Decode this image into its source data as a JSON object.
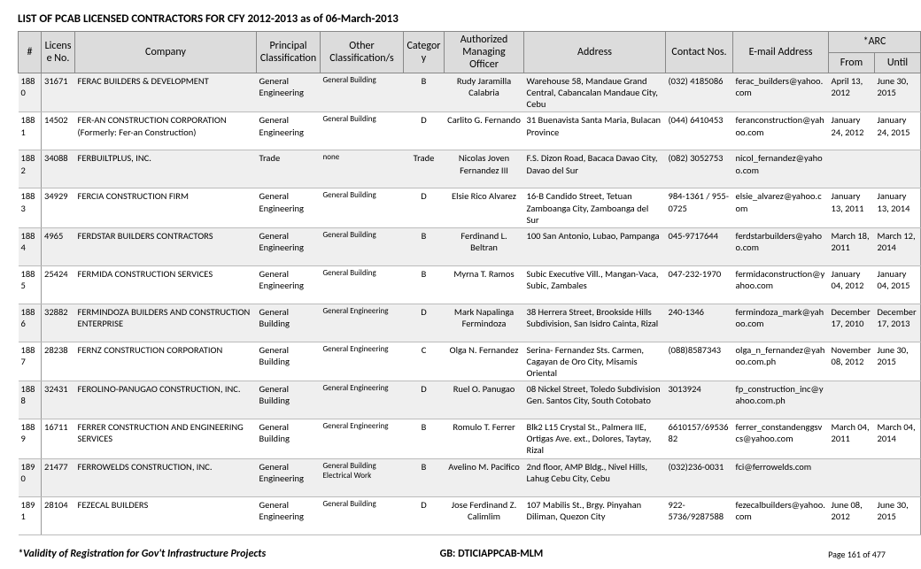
{
  "title": "LIST OF PCAB LICENSED CONTRACTORS FOR CFY 2012-2013 as of  06-March-2013",
  "columns": {
    "num": "#",
    "license": "License No.",
    "company": "Company",
    "principal": "Principal Classification",
    "other": "Other Classification/s",
    "category": "Category",
    "manager": "Authorized Managing Officer",
    "address": "Address",
    "contact": "Contact Nos.",
    "email": "E-mail Address",
    "arc": "*ARC",
    "from": "From",
    "until": "Until"
  },
  "rows": [
    {
      "n": "1880",
      "lic": "31671",
      "comp": "FERAC BUILDERS & DEVELOPMENT",
      "prin": "General Engineering",
      "other": "General Building",
      "cat": "B",
      "mgr": "Rudy Jaramilla Calabria",
      "addr": "Warehouse 58, Mandaue Grand Central, Cabancalan Mandaue City, Cebu",
      "contact": "(032) 4185086",
      "email": "ferac_builders@yahoo.com",
      "from": "April 13, 2012",
      "until": "June 30, 2015"
    },
    {
      "n": "1881",
      "lic": "14502",
      "comp": "FER-AN CONSTRUCTION CORPORATION (Formerly: Fer-an Construction)",
      "prin": "General Engineering",
      "other": "General Building",
      "cat": "D",
      "mgr": "Carlito G. Fernando",
      "addr": "31 Buenavista Santa Maria, Bulacan Province",
      "contact": "(044) 6410453",
      "email": "feranconstruction@yahoo.com",
      "from": "January 24, 2012",
      "until": "January 24, 2015"
    },
    {
      "n": "1882",
      "lic": "34088",
      "comp": "FERBUILTPLUS, INC.",
      "prin": "Trade",
      "other": "none",
      "cat": "Trade",
      "mgr": "Nicolas Joven Fernandez  III",
      "addr": "F.S. Dizon Road, Bacaca Davao City, Davao del Sur",
      "contact": "(082) 3052753",
      "email": "nicol_fernandez@yahoo.com",
      "from": "",
      "until": ""
    },
    {
      "n": "1883",
      "lic": "34929",
      "comp": "FERCIA CONSTRUCTION FIRM",
      "prin": "General Engineering",
      "other": "General Building",
      "cat": "D",
      "mgr": "Elsie Rico Alvarez",
      "addr": "16-B Candido Street, Tetuan Zamboanga City, Zamboanga del Sur",
      "contact": "984-1361 / 955-0725",
      "email": "elsie_alvarez@yahoo.com",
      "from": "January 13, 2011",
      "until": "January 13, 2014"
    },
    {
      "n": "1884",
      "lic": "4965",
      "comp": "FERDSTAR BUILDERS CONTRACTORS",
      "prin": "General Engineering",
      "other": "General Building",
      "cat": "B",
      "mgr": "Ferdinand L. Beltran",
      "addr": "100 San Antonio, Lubao, Pampanga",
      "contact": "045-9717644",
      "email": "ferdstarbuilders@yahoo.com",
      "from": "March 18, 2011",
      "until": "March 12, 2014"
    },
    {
      "n": "1885",
      "lic": "25424",
      "comp": "FERMIDA CONSTRUCTION SERVICES",
      "prin": "General Engineering",
      "other": "General Building",
      "cat": "B",
      "mgr": "Myrna T. Ramos",
      "addr": "Subic Executive Vill., Mangan-Vaca, Subic, Zambales",
      "contact": "047-232-1970",
      "email": "fermidaconstruction@yahoo.com",
      "from": "January 04, 2012",
      "until": "January 04, 2015"
    },
    {
      "n": "1886",
      "lic": "32882",
      "comp": "FERMINDOZA BUILDERS AND CONSTRUCTION ENTERPRISE",
      "prin": "General Building",
      "other": "General Engineering",
      "cat": "D",
      "mgr": "Mark Napalinga Fermindoza",
      "addr": "38 Herrera Street, Brookside Hills Subdivision, San Isidro Cainta, Rizal",
      "contact": "240-1346",
      "email": "fermindoza_mark@yahoo.com",
      "from": "December 17, 2010",
      "until": "December 17, 2013"
    },
    {
      "n": "1887",
      "lic": "28238",
      "comp": "FERNZ CONSTRUCTION CORPORATION",
      "prin": "General Building",
      "other": "General Engineering",
      "cat": "C",
      "mgr": "Olga N. Fernandez",
      "addr": "Serina- Fernandez Sts. Carmen, Cagayan de Oro City, Misamis Oriental",
      "contact": "(088)8587343",
      "email": "olga_n_fernandez@yahoo.com.ph",
      "from": "November 08, 2012",
      "until": "June 30, 2015"
    },
    {
      "n": "1888",
      "lic": "32431",
      "comp": "FEROLINO-PANUGAO CONSTRUCTION,  INC.",
      "prin": "General Building",
      "other": "General Engineering",
      "cat": "D",
      "mgr": "Ruel O. Panugao",
      "addr": "08 Nickel Street, Toledo Subdivision Gen. Santos City, South Cotobato",
      "contact": "3013924",
      "email": "fp_construction_inc@yahoo.com.ph",
      "from": "",
      "until": ""
    },
    {
      "n": "1889",
      "lic": "16711",
      "comp": "FERRER CONSTRUCTION AND ENGINEERING SERVICES",
      "prin": "General Building",
      "other": "General Engineering",
      "cat": "B",
      "mgr": "Romulo T. Ferrer",
      "addr": "Blk2 L15 Crystal St., Palmera IIE, Ortigas Ave. ext., Dolores, Taytay, Rizal",
      "contact": "6610157/6953682",
      "email": "ferrer_constandenggsvcs@yahoo.com",
      "from": "March 04, 2011",
      "until": "March 04, 2014"
    },
    {
      "n": "1890",
      "lic": "21477",
      "comp": "FERROWELDS CONSTRUCTION, INC.",
      "prin": "General Engineering",
      "other": "General Building\nElectrical Work",
      "cat": "B",
      "mgr": "Avelino M. Pacifico",
      "addr": "2nd floor, AMP Bldg., Nivel Hills, Lahug Cebu City, Cebu",
      "contact": "(032)236-0031",
      "email": "fci@ferrowelds.com",
      "from": "",
      "until": ""
    },
    {
      "n": "1891",
      "lic": "28104",
      "comp": "FEZECAL BUILDERS",
      "prin": "General Engineering",
      "other": "General Building",
      "cat": "D",
      "mgr": "Jose Ferdinand Z. Calimlim",
      "addr": "107 Mabilis St., Brgy. Pinyahan Diliman, Quezon City",
      "contact": "922-5736/9287588",
      "email": "fezecalbuilders@yahoo.com",
      "from": "June 08, 2012",
      "until": "June 30, 2015"
    }
  ],
  "footer": {
    "left": "*Validity of Registration for Gov't Infrastructure Projects",
    "center": "GB:  DTICIAPPCAB-MLM",
    "right": "Page 161 of 477"
  },
  "style": {
    "header_bg": "#dcdcdc",
    "stripe_bg": "#efefef",
    "border_color": "#999999",
    "font_family": "Calibri",
    "title_fontsize": 13,
    "body_fontsize": 10.5,
    "other_fontsize": 9
  }
}
